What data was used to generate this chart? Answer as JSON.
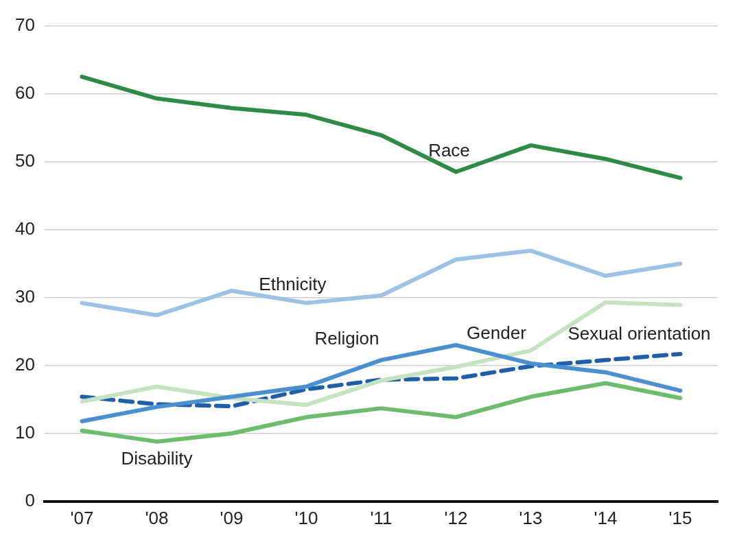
{
  "chart_data": {
    "type": "line",
    "categories": [
      "'07",
      "'08",
      "'09",
      "'10",
      "'11",
      "'12",
      "'13",
      "'14",
      "'15"
    ],
    "series": [
      {
        "name": "Race",
        "color": "#2e8b46",
        "values": [
          62.5,
          59.3,
          57.9,
          56.9,
          53.9,
          48.5,
          52.4,
          50.4,
          47.6
        ]
      },
      {
        "name": "Ethnicity",
        "color": "#9cc3e6",
        "values": [
          29.2,
          27.4,
          31,
          29.2,
          30.3,
          35.6,
          36.9,
          33.2,
          35
        ]
      },
      {
        "name": "Religion",
        "color": "#4a90d0",
        "values": [
          11.8,
          13.9,
          15.4,
          16.9,
          20.8,
          23,
          20.3,
          19,
          16.3
        ]
      },
      {
        "name": "Gender",
        "color": "#c5e3c0",
        "values": [
          14.7,
          16.9,
          15.2,
          14.2,
          17.8,
          19.8,
          22.2,
          29.3,
          28.9
        ]
      },
      {
        "name": "Sexual orientation",
        "color": "#1f5ea8",
        "line_style": "dashed",
        "values": [
          15.4,
          14.3,
          14,
          16.5,
          17.9,
          18.1,
          19.9,
          20.8,
          21.7
        ]
      },
      {
        "name": "Disability",
        "color": "#6dbb6d",
        "values": [
          10.4,
          8.8,
          10,
          12.4,
          13.7,
          12.4,
          15.4,
          17.4,
          15.2
        ]
      }
    ],
    "ylim": [
      0,
      70
    ],
    "yticks": [
      0,
      10,
      20,
      30,
      40,
      50,
      60,
      70
    ],
    "grid": "y",
    "legend": false,
    "marker": "none",
    "line_style": "solid"
  }
}
